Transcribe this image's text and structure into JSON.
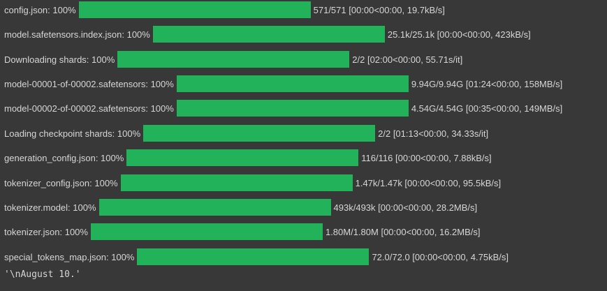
{
  "progress_bars": [
    {
      "label": "config.json: 100%",
      "progress": 1.0,
      "stats": "571/571 [00:00<00:00, 19.7kB/s]"
    },
    {
      "label": "model.safetensors.index.json: 100%",
      "progress": 1.0,
      "stats": "25.1k/25.1k [00:00<00:00, 423kB/s]"
    },
    {
      "label": "Downloading shards: 100%",
      "progress": 1.0,
      "stats": "2/2 [02:00<00:00, 55.71s/it]"
    },
    {
      "label": "model-00001-of-00002.safetensors: 100%",
      "progress": 1.0,
      "stats": "9.94G/9.94G [01:24<00:00, 158MB/s]"
    },
    {
      "label": "model-00002-of-00002.safetensors: 100%",
      "progress": 1.0,
      "stats": "4.54G/4.54G [00:35<00:00, 149MB/s]"
    },
    {
      "label": "Loading checkpoint shards: 100%",
      "progress": 1.0,
      "stats": "2/2 [01:13<00:00, 34.33s/it]"
    },
    {
      "label": "generation_config.json: 100%",
      "progress": 1.0,
      "stats": "116/116 [00:00<00:00, 7.88kB/s]"
    },
    {
      "label": "tokenizer_config.json: 100%",
      "progress": 1.0,
      "stats": "1.47k/1.47k [00:00<00:00, 95.5kB/s]"
    },
    {
      "label": "tokenizer.model: 100%",
      "progress": 1.0,
      "stats": "493k/493k [00:00<00:00, 28.2MB/s]"
    },
    {
      "label": "tokenizer.json: 100%",
      "progress": 1.0,
      "stats": "1.80M/1.80M [00:00<00:00, 16.2MB/s]"
    },
    {
      "label": "special_tokens_map.json: 100%",
      "progress": 1.0,
      "stats": "72.0/72.0 [00:00<00:00, 4.75kB/s]"
    }
  ],
  "output_text": "'\\nAugust 10.'",
  "colors": {
    "background": "#383838",
    "bar_fill": "#22b35a",
    "text": "#d6d6d6"
  }
}
